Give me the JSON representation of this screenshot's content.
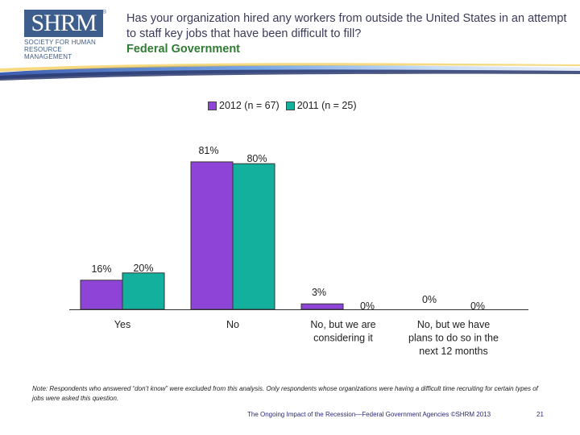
{
  "logo": {
    "text": "SHRM",
    "registered": "®",
    "subtitle": "Society for Human Resource Management"
  },
  "header": {
    "question": "Has your organization hired any workers from outside the United States in an attempt to staff key jobs that have been difficult to fill?",
    "subtitle": "Federal Government"
  },
  "colors": {
    "series_2012": "#8e44d6",
    "series_2011": "#13b19d",
    "band_dark": "#2b3a6e",
    "band_mid": "#4a7bd0"
  },
  "chart_data": {
    "type": "bar",
    "categories": [
      "Yes",
      "No",
      "No, but we are considering it",
      "No, but we have plans to do so in the next 12 months"
    ],
    "category_lines": [
      [
        "Yes"
      ],
      [
        "No"
      ],
      [
        "No, but we are",
        "considering it"
      ],
      [
        "No, but we have",
        "plans to do so in the",
        "next 12 months"
      ]
    ],
    "series": [
      {
        "name": "2012 (n = 67)",
        "values": [
          16,
          81,
          3,
          0
        ],
        "labels": [
          "16%",
          "81%",
          "3%",
          "0%"
        ]
      },
      {
        "name": "2011 (n = 25)",
        "values": [
          20,
          80,
          0,
          0
        ],
        "labels": [
          "20%",
          "80%",
          "0%",
          "0%"
        ]
      }
    ],
    "ylim": [
      0,
      100
    ],
    "grid": false,
    "legend": "top-center"
  },
  "note": "Note: Respondents who answered “don’t know” were excluded from this analysis. Only respondents whose organizations were having a difficult time recruiting for certain types of jobs were asked this question.",
  "footer": {
    "text": "The Ongoing Impact of the Recession—Federal Government Agencies ©SHRM 2013",
    "page": "21"
  }
}
